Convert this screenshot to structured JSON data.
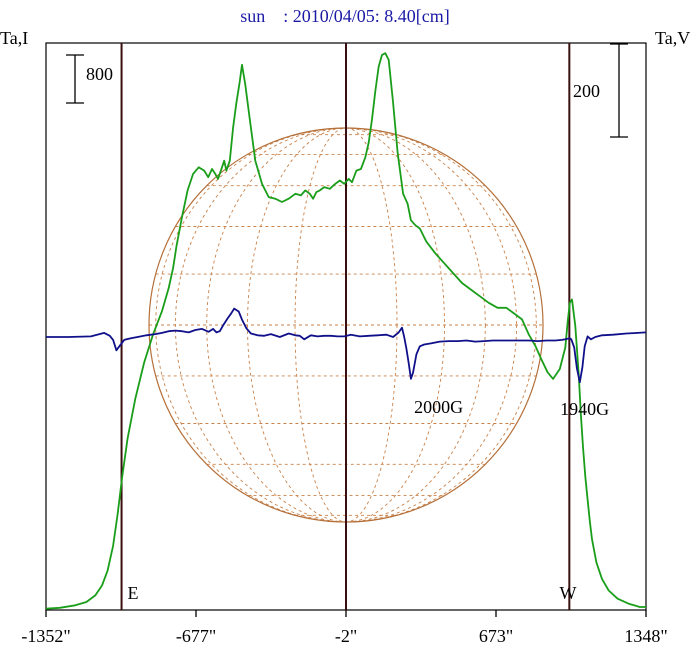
{
  "chart_data": {
    "type": "line",
    "title": "sun    : 2010/04/05: 8.40[cm]",
    "left_axis_label": "Ta,I",
    "right_axis_label": "Ta,V",
    "left_scale_bar_label": "800",
    "right_scale_bar_label": "200",
    "x_tick_labels": [
      "-1352\"",
      "-677\"",
      "-2\"",
      "673\"",
      "1348\""
    ],
    "x_ticks": [
      -1352,
      -677,
      -2,
      673,
      1348
    ],
    "xlim": [
      -1352,
      1348
    ],
    "direction_labels": [
      "E",
      "W"
    ],
    "vertical_line_positions": [
      -1012,
      -2,
      1003
    ],
    "annotations": [
      {
        "text": "2000G",
        "x": 280
      },
      {
        "text": "1940G",
        "x": 1000
      }
    ],
    "grid": "solar disk with latitude/longitude grid",
    "colors": {
      "intensity": "#1a9e1a",
      "polarization": "#10108a",
      "disk": "#b5703a",
      "title": "#1a1aa6"
    },
    "series": [
      {
        "name": "Ta,I",
        "x": [
          -1352,
          -1290,
          -1220,
          -1170,
          -1130,
          -1100,
          -1075,
          -1050,
          -1030,
          -1010,
          -985,
          -950,
          -910,
          -870,
          -830,
          -800,
          -780,
          -765,
          -740,
          -715,
          -690,
          -665,
          -640,
          -622,
          -605,
          -590,
          -578,
          -565,
          -550,
          -540,
          -525,
          -510,
          -495,
          -480,
          -470,
          -455,
          -435,
          -410,
          -380,
          -350,
          -320,
          -290,
          -260,
          -230,
          -205,
          -185,
          -165,
          -150,
          -135,
          -120,
          -100,
          -75,
          -50,
          -30,
          -10,
          10,
          25,
          45,
          65,
          85,
          100,
          115,
          130,
          145,
          160,
          175,
          190,
          210,
          230,
          255,
          275,
          290,
          310,
          330,
          360,
          400,
          440,
          480,
          520,
          560,
          600,
          640,
          680,
          720,
          760,
          790,
          820,
          850,
          880,
          905,
          930,
          960,
          985,
          995,
          1005,
          1015,
          1030,
          1045,
          1055,
          1065,
          1075,
          1085,
          1095,
          1105,
          1125,
          1150,
          1180,
          1220,
          1270,
          1320,
          1348
        ],
        "values": [
          -10,
          -5,
          10,
          30,
          70,
          130,
          220,
          370,
          560,
          780,
          1020,
          1260,
          1480,
          1650,
          1790,
          1930,
          2050,
          2180,
          2360,
          2520,
          2620,
          2660,
          2640,
          2600,
          2650,
          2620,
          2590,
          2640,
          2700,
          2640,
          2700,
          2900,
          3050,
          3180,
          3280,
          3160,
          2950,
          2700,
          2560,
          2480,
          2470,
          2450,
          2470,
          2500,
          2490,
          2520,
          2500,
          2470,
          2510,
          2520,
          2540,
          2530,
          2560,
          2580,
          2560,
          2590,
          2570,
          2640,
          2650,
          2720,
          2810,
          2950,
          3120,
          3270,
          3340,
          3350,
          3310,
          3050,
          2750,
          2500,
          2440,
          2340,
          2310,
          2290,
          2210,
          2140,
          2080,
          2020,
          1960,
          1920,
          1880,
          1840,
          1810,
          1810,
          1770,
          1740,
          1650,
          1580,
          1490,
          1420,
          1380,
          1440,
          1570,
          1720,
          1840,
          1860,
          1700,
          1410,
          1160,
          960,
          790,
          650,
          520,
          410,
          270,
          170,
          100,
          50,
          20,
          0,
          0
        ]
      },
      {
        "name": "Ta,V",
        "x": [
          -1352,
          -1250,
          -1150,
          -1090,
          -1065,
          -1050,
          -1035,
          -1020,
          -1000,
          -970,
          -940,
          -900,
          -860,
          -830,
          -800,
          -770,
          -740,
          -710,
          -680,
          -650,
          -620,
          -600,
          -585,
          -570,
          -555,
          -535,
          -520,
          -505,
          -485,
          -470,
          -450,
          -430,
          -400,
          -370,
          -340,
          -300,
          -260,
          -230,
          -210,
          -190,
          -160,
          -130,
          -100,
          -70,
          -40,
          -10,
          20,
          60,
          100,
          140,
          180,
          210,
          235,
          250,
          260,
          270,
          280,
          290,
          300,
          315,
          330,
          350,
          380,
          420,
          460,
          500,
          540,
          580,
          620,
          660,
          700,
          740,
          780,
          820,
          860,
          900,
          940,
          970,
          985,
          995,
          1005,
          1012,
          1025,
          1037,
          1050,
          1062,
          1072,
          1085,
          1100,
          1120,
          1150,
          1200,
          1260,
          1310,
          1348
        ],
        "values": [
          0,
          0,
          1,
          7,
          2,
          -5,
          -23,
          -15,
          -5,
          -2,
          0,
          3,
          5,
          7,
          10,
          11,
          10,
          8,
          12,
          14,
          9,
          14,
          8,
          10,
          20,
          32,
          40,
          49,
          44,
          30,
          15,
          6,
          3,
          2,
          5,
          0,
          6,
          3,
          2,
          -4,
          3,
          1,
          2,
          2,
          1,
          1,
          4,
          1,
          2,
          3,
          4,
          0,
          8,
          16,
          0,
          -20,
          -45,
          -72,
          -61,
          -30,
          -16,
          -13,
          -11,
          -8,
          -7,
          -7,
          -6,
          -8,
          -7,
          -6,
          -6,
          -6,
          -6,
          -6,
          -7,
          -6,
          -6,
          -5,
          -4,
          -3,
          -2,
          -4,
          -18,
          -54,
          -78,
          -52,
          -16,
          1,
          -4,
          0,
          3,
          4,
          6,
          7,
          8
        ]
      }
    ]
  }
}
